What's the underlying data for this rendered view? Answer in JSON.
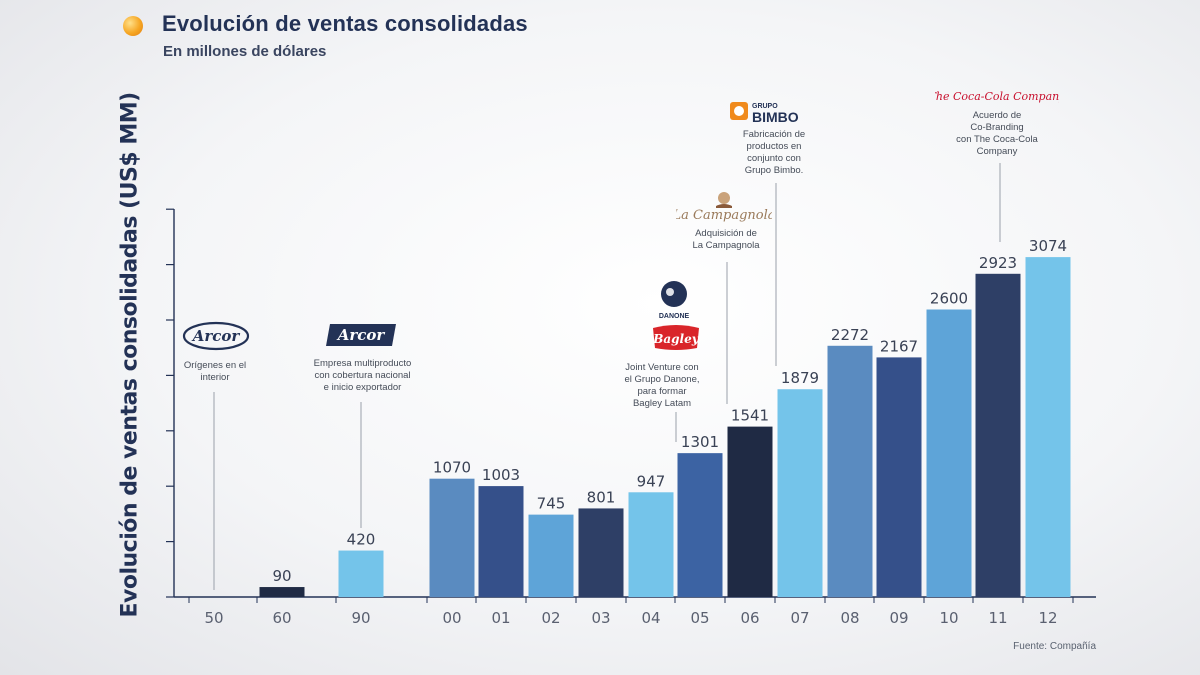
{
  "header": {
    "title": "Evolución de ventas consolidadas",
    "subtitle": "En millones de dólares"
  },
  "source": "Fuente: Compañía",
  "colors": {
    "accent": "#f6a623",
    "navy": "#233256"
  },
  "chart_data": {
    "type": "bar",
    "title": "Evolución de ventas consolidadas",
    "subtitle": "En millones de dólares",
    "ylabel": "Evolución de ventas consolidadas (US$ MM)",
    "xlabel": "",
    "categories": [
      "50",
      "60",
      "90",
      "00",
      "01",
      "02",
      "03",
      "04",
      "05",
      "06",
      "07",
      "08",
      "09",
      "10",
      "11",
      "12"
    ],
    "values": [
      null,
      90,
      420,
      1070,
      1003,
      745,
      801,
      947,
      1301,
      1541,
      1879,
      2272,
      2167,
      2600,
      2923,
      3074
    ],
    "labels": [
      "",
      "90",
      "420",
      "1070",
      "1003",
      "745",
      "801",
      "947",
      "1301",
      "1541",
      "1879",
      "2272",
      "2167",
      "2600",
      "2923",
      "3074"
    ],
    "bar_colors": [
      "#000000",
      "#1f2a44",
      "#74c4ea",
      "#5a8bc0",
      "#35508a",
      "#5ea4d8",
      "#2e3f66",
      "#74c4ea",
      "#3c63a3",
      "#1f2a44",
      "#74c4ea",
      "#5a8bc0",
      "#35508a",
      "#5ea4d8",
      "#2e3f66",
      "#74c4ea"
    ],
    "ylim": [
      0,
      3500
    ],
    "grid": false,
    "annotations": [
      {
        "category": "50",
        "logo": "Arcor",
        "text": "Orígenes en el interior"
      },
      {
        "category": "90",
        "logo": "Arcor",
        "text": "Empresa multiproducto con cobertura nacional e inicio exportador"
      },
      {
        "category": "05",
        "logo": "DANONE / Bagley",
        "text": "Joint Venture con el Grupo Danone, para formar Bagley Latam"
      },
      {
        "category": "06",
        "logo": "La Campagnola",
        "text": "Adquisición de La Campagnola"
      },
      {
        "category": "07",
        "logo": "GRUPO BIMBO",
        "text": "Fabricación de productos en conjunto con Grupo Bimbo."
      },
      {
        "category": "11",
        "logo": "The Coca-Cola Company",
        "text": "Acuerdo de Co-Branding con The Coca-Cola Company"
      }
    ]
  },
  "annotations_display": {
    "a50": {
      "logo": "Arcor",
      "text": "Orígenes en el\ninterior"
    },
    "a90": {
      "logo": "Arcor",
      "text": "Empresa multiproducto\ncon cobertura nacional\ne inicio exportador"
    },
    "a05": {
      "logo1": "DANONE",
      "logo2": "Bagley",
      "text": "Joint Venture con\nel Grupo Danone,\npara formar\nBagley Latam"
    },
    "a06": {
      "logo": "La Campagnola",
      "text": "Adquisición de\nLa Campagnola"
    },
    "a07": {
      "logo_top": "GRUPO",
      "logo": "BIMBO",
      "text": "Fabricación de\nproductos en\nconjunto con\nGrupo Bimbo."
    },
    "a11": {
      "logo": "The Coca-Cola Company",
      "text": "Acuerdo de\nCo-Branding\ncon The Coca-Cola\nCompany"
    }
  }
}
